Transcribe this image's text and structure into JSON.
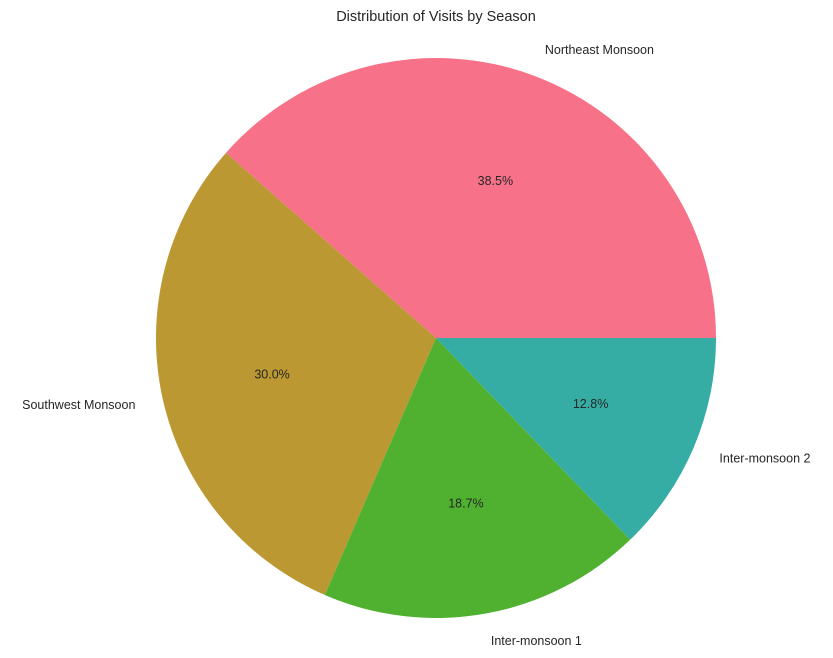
{
  "chart_data": {
    "type": "pie",
    "title": "Distribution of Visits by Season",
    "slices": [
      {
        "label": "Northeast Monsoon",
        "value": 38.5,
        "pct_label": "38.5%",
        "color": "#f77189"
      },
      {
        "label": "Southwest Monsoon",
        "value": 30.0,
        "pct_label": "30.0%",
        "color": "#bb9832"
      },
      {
        "label": "Inter-monsoon 1",
        "value": 18.7,
        "pct_label": "18.7%",
        "color": "#50b131"
      },
      {
        "label": "Inter-monsoon 2",
        "value": 12.8,
        "pct_label": "12.8%",
        "color": "#36ada4"
      }
    ],
    "start_angle": "0° (3 o'clock), counter-clockwise",
    "legend": "none"
  }
}
